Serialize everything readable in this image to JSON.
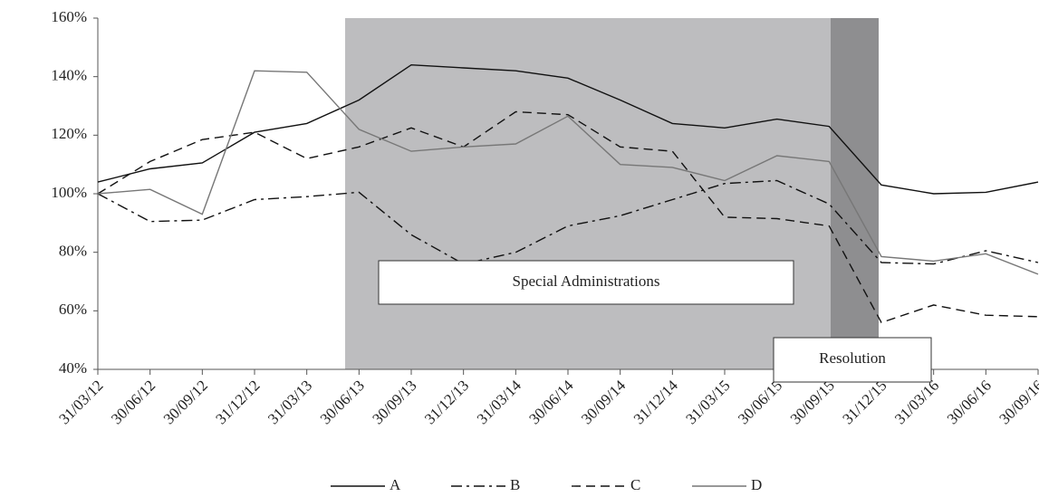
{
  "chart_data": {
    "type": "line",
    "categories": [
      "31/03/12",
      "30/06/12",
      "30/09/12",
      "31/12/12",
      "31/03/13",
      "30/06/13",
      "30/09/13",
      "31/12/13",
      "31/03/14",
      "30/06/14",
      "30/09/14",
      "31/12/14",
      "31/03/15",
      "30/06/15",
      "30/09/15",
      "31/12/15",
      "31/03/16",
      "30/06/16",
      "30/09/16"
    ],
    "series": [
      {
        "name": "A",
        "color": "#111111",
        "style": "solid",
        "values": [
          104,
          108.5,
          110.5,
          121,
          124,
          132,
          144,
          143,
          142,
          139.5,
          132,
          124,
          122.5,
          125.5,
          123,
          103,
          100,
          100.5,
          104
        ]
      },
      {
        "name": "B",
        "color": "#111111",
        "style": "dashdot",
        "values": [
          100,
          90.5,
          91,
          98,
          99,
          100.5,
          86,
          76,
          80,
          89,
          92.5,
          98,
          103.5,
          104.5,
          96.5,
          76.5,
          76,
          80.5,
          76.5
        ]
      },
      {
        "name": "C",
        "color": "#111111",
        "style": "dashed",
        "values": [
          100,
          111,
          118.5,
          121,
          112,
          116,
          122.5,
          116,
          128,
          127,
          116,
          114.5,
          92,
          91.5,
          89,
          56,
          62,
          58.5,
          58
        ]
      },
      {
        "name": "D",
        "color": "#777777",
        "style": "solid",
        "values": [
          100,
          101.5,
          93,
          142,
          141.5,
          122,
          114.5,
          116,
          117,
          126.5,
          110,
          109,
          104.5,
          113,
          111,
          78.5,
          77,
          79.5,
          72.5
        ]
      }
    ],
    "ylim": [
      40,
      160
    ],
    "yticks": [
      {
        "value": 40,
        "label": "40%"
      },
      {
        "value": 60,
        "label": "60%"
      },
      {
        "value": 80,
        "label": "80%"
      },
      {
        "value": 100,
        "label": "100%"
      },
      {
        "value": 120,
        "label": "120%"
      },
      {
        "value": 140,
        "label": "140%"
      },
      {
        "value": 160,
        "label": "160%"
      }
    ],
    "annotations": [
      "Special Administrations",
      "Resolution"
    ],
    "legend": "bottom"
  }
}
